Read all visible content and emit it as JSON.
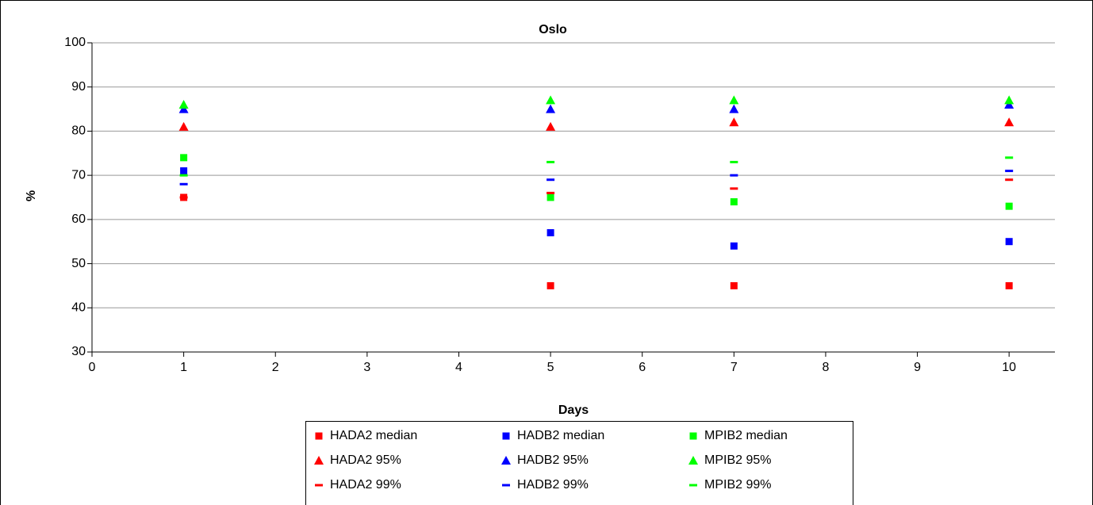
{
  "chart_data": {
    "type": "scatter",
    "title": "Oslo",
    "x_label": "Days",
    "y_label": "%",
    "xlim": [
      0,
      10.5
    ],
    "xticks": [
      0,
      1,
      2,
      3,
      4,
      5,
      6,
      7,
      8,
      9,
      10
    ],
    "ylim": [
      30,
      100
    ],
    "yticks": [
      30,
      40,
      50,
      60,
      70,
      80,
      90,
      100
    ],
    "grid": true,
    "x": [
      1,
      5,
      7,
      10
    ],
    "series": [
      {
        "name": "HADA2 median",
        "color": "#ff0000",
        "marker": "square",
        "values": [
          65,
          45,
          45,
          45
        ]
      },
      {
        "name": "HADB2 median",
        "color": "#0000ff",
        "marker": "square",
        "values": [
          71,
          57,
          54,
          55
        ]
      },
      {
        "name": "MPIB2 median",
        "color": "#00ff00",
        "marker": "square",
        "values": [
          74,
          65,
          64,
          63
        ]
      },
      {
        "name": "HADA2 95%",
        "color": "#ff0000",
        "marker": "triangle",
        "values": [
          81,
          81,
          82,
          82
        ]
      },
      {
        "name": "HADB2 95%",
        "color": "#0000ff",
        "marker": "triangle",
        "values": [
          85,
          85,
          85,
          86
        ]
      },
      {
        "name": "MPIB2 95%",
        "color": "#00ff00",
        "marker": "triangle",
        "values": [
          86,
          87,
          87,
          87
        ]
      },
      {
        "name": "HADA2 99%",
        "color": "#ff0000",
        "marker": "dash",
        "values": [
          65,
          66,
          67,
          69
        ]
      },
      {
        "name": "HADB2 99%",
        "color": "#0000ff",
        "marker": "dash",
        "values": [
          68,
          69,
          70,
          71
        ]
      },
      {
        "name": "MPIB2 99%",
        "color": "#00ff00",
        "marker": "dash",
        "values": [
          70,
          73,
          73,
          74
        ]
      }
    ]
  }
}
